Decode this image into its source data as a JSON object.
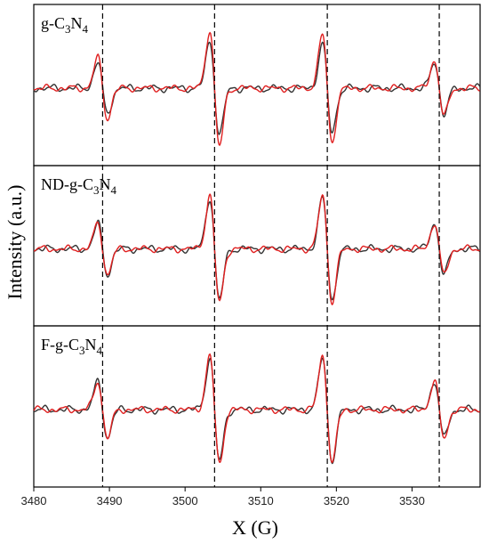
{
  "chart_data": {
    "type": "line",
    "xlabel": "X (G)",
    "ylabel": "Intensity (a.u.)",
    "xlim": [
      3480,
      3539
    ],
    "xticks": [
      3480,
      3490,
      3500,
      3510,
      3520,
      3530
    ],
    "x_tick_labels": [
      "3480",
      "3490",
      "3500",
      "3510",
      "3520",
      "3530"
    ],
    "peak_markers": [
      3489.1,
      3503.9,
      3518.8,
      3533.6
    ],
    "colors": {
      "series_black": "#333333",
      "series_red": "#e02020",
      "marker": "#000000"
    },
    "panels": [
      {
        "label": {
          "base": "g-C",
          "sub1": "3",
          "mid": "N",
          "sub2": "4"
        },
        "peaks": [
          {
            "x": 3489.1,
            "black_amp": 0.55,
            "red_amp": 0.65
          },
          {
            "x": 3503.9,
            "black_amp": 1.0,
            "red_amp": 1.25
          },
          {
            "x": 3518.8,
            "black_amp": 0.95,
            "red_amp": 1.15
          },
          {
            "x": 3533.6,
            "black_amp": 0.55,
            "red_amp": 0.6
          }
        ]
      },
      {
        "label": {
          "base": "ND-g-C",
          "sub1": "3",
          "mid": "N",
          "sub2": "4"
        },
        "peaks": [
          {
            "x": 3489.1,
            "black_amp": 0.55,
            "red_amp": 0.55
          },
          {
            "x": 3503.9,
            "black_amp": 1.1,
            "red_amp": 1.15
          },
          {
            "x": 3518.8,
            "black_amp": 1.1,
            "red_amp": 1.15
          },
          {
            "x": 3533.6,
            "black_amp": 0.55,
            "red_amp": 0.55
          }
        ]
      },
      {
        "label": {
          "base": "F-g-C",
          "sub1": "3",
          "mid": "N",
          "sub2": "4"
        },
        "peaks": [
          {
            "x": 3489.1,
            "black_amp": 0.6,
            "red_amp": 0.6
          },
          {
            "x": 3503.9,
            "black_amp": 1.1,
            "red_amp": 1.15
          },
          {
            "x": 3518.8,
            "black_amp": 1.1,
            "red_amp": 1.15
          },
          {
            "x": 3533.6,
            "black_amp": 0.6,
            "red_amp": 0.6
          }
        ]
      }
    ]
  }
}
